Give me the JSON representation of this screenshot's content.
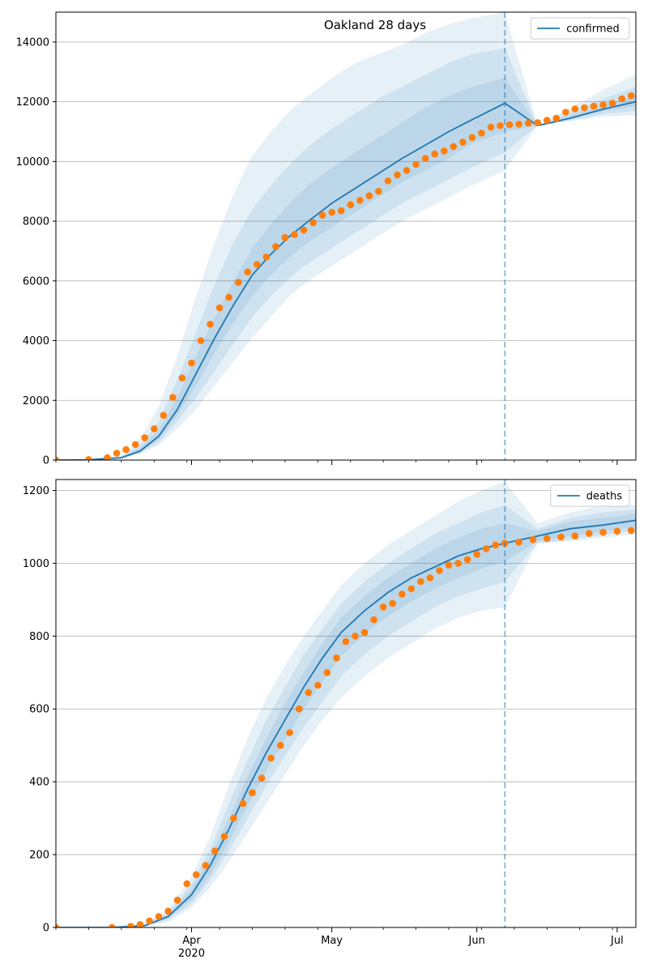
{
  "chart_data": [
    {
      "type": "line",
      "title": "Oakland 28 days",
      "xlabel": "",
      "ylabel": "",
      "legend": "top-right",
      "legend_entries": [
        "confirmed"
      ],
      "ylim": [
        0,
        15000
      ],
      "yticks": [
        0,
        2000,
        4000,
        6000,
        8000,
        10000,
        12000,
        14000
      ],
      "grid": "horizontal",
      "xlim": [
        "2020-03-03",
        "2020-07-05"
      ],
      "x_tick_labels": [],
      "forecast_start": "2020-06-07",
      "colors": {
        "line": "#1f77b4",
        "observed": "#ff7f0e",
        "band": "#1f77b4"
      },
      "series": [
        {
          "name": "confirmed",
          "kind": "model",
          "x": [
            "2020-03-03",
            "2020-03-10",
            "2020-03-17",
            "2020-03-21",
            "2020-03-25",
            "2020-03-29",
            "2020-04-02",
            "2020-04-06",
            "2020-04-10",
            "2020-04-14",
            "2020-04-18",
            "2020-04-22",
            "2020-04-26",
            "2020-05-01",
            "2020-05-06",
            "2020-05-11",
            "2020-05-16",
            "2020-05-21",
            "2020-05-26",
            "2020-05-31",
            "2020-06-07",
            "2020-06-14",
            "2020-06-21",
            "2020-06-28",
            "2020-07-05"
          ],
          "values": [
            0,
            10,
            80,
            300,
            800,
            1700,
            2900,
            4100,
            5200,
            6200,
            6900,
            7500,
            8000,
            8600,
            9100,
            9600,
            10100,
            10550,
            11000,
            11400,
            11950,
            11200,
            11450,
            11750,
            12000
          ],
          "bands": [
            {
              "lower": [
                0,
                0,
                50,
                200,
                500,
                1050,
                1700,
                2500,
                3300,
                4100,
                4800,
                5500,
                6000,
                6500,
                7000,
                7500,
                8000,
                8400,
                8800,
                9200,
                9700,
                11200,
                11350,
                11500,
                11550
              ],
              "upper": [
                0,
                30,
                150,
                700,
                1800,
                3500,
                5500,
                7300,
                8900,
                10200,
                11000,
                11700,
                12200,
                12800,
                13300,
                13600,
                13900,
                14300,
                14600,
                14800,
                15000,
                11200,
                11800,
                12400,
                12900
              ]
            },
            {
              "lower": [
                0,
                0,
                60,
                230,
                600,
                1300,
                2100,
                3000,
                3900,
                4800,
                5500,
                6100,
                6600,
                7100,
                7600,
                8100,
                8600,
                9000,
                9400,
                9800,
                10300,
                11200,
                11380,
                11580,
                11700
              ],
              "upper": [
                0,
                20,
                120,
                500,
                1300,
                2700,
                4300,
                5900,
                7300,
                8400,
                9200,
                9900,
                10500,
                11100,
                11600,
                12100,
                12500,
                12900,
                13300,
                13600,
                13800,
                11200,
                11650,
                12100,
                12500
              ]
            },
            {
              "lower": [
                0,
                5,
                70,
                260,
                700,
                1500,
                2500,
                3600,
                4600,
                5500,
                6200,
                6800,
                7300,
                7800,
                8300,
                8800,
                9300,
                9700,
                10100,
                10600,
                11000,
                11200,
                11420,
                11680,
                11850
              ],
              "upper": [
                0,
                15,
                100,
                400,
                1000,
                2100,
                3500,
                4800,
                6000,
                7100,
                7900,
                8600,
                9200,
                9800,
                10300,
                10800,
                11300,
                11800,
                12200,
                12500,
                12800,
                11200,
                11550,
                11900,
                12200
              ]
            }
          ]
        },
        {
          "name": "",
          "kind": "observed",
          "x": [
            "2020-03-03",
            "2020-03-10",
            "2020-03-14",
            "2020-03-16",
            "2020-03-18",
            "2020-03-20",
            "2020-03-22",
            "2020-03-24",
            "2020-03-26",
            "2020-03-28",
            "2020-03-30",
            "2020-04-01",
            "2020-04-03",
            "2020-04-05",
            "2020-04-07",
            "2020-04-09",
            "2020-04-11",
            "2020-04-13",
            "2020-04-15",
            "2020-04-17",
            "2020-04-19",
            "2020-04-21",
            "2020-04-23",
            "2020-04-25",
            "2020-04-27",
            "2020-04-29",
            "2020-05-01",
            "2020-05-03",
            "2020-05-05",
            "2020-05-07",
            "2020-05-09",
            "2020-05-11",
            "2020-05-13",
            "2020-05-15",
            "2020-05-17",
            "2020-05-19",
            "2020-05-21",
            "2020-05-23",
            "2020-05-25",
            "2020-05-27",
            "2020-05-29",
            "2020-05-31",
            "2020-06-02",
            "2020-06-04",
            "2020-06-06",
            "2020-06-08",
            "2020-06-10",
            "2020-06-12",
            "2020-06-14",
            "2020-06-16",
            "2020-06-18",
            "2020-06-20",
            "2020-06-22",
            "2020-06-24",
            "2020-06-26",
            "2020-06-28",
            "2020-06-30",
            "2020-07-02",
            "2020-07-04"
          ],
          "values": [
            0,
            20,
            80,
            230,
            350,
            520,
            750,
            1050,
            1500,
            2100,
            2750,
            3250,
            4000,
            4550,
            5100,
            5450,
            5950,
            6300,
            6550,
            6800,
            7150,
            7450,
            7550,
            7700,
            7950,
            8200,
            8300,
            8350,
            8550,
            8700,
            8850,
            9000,
            9350,
            9550,
            9700,
            9900,
            10100,
            10250,
            10350,
            10500,
            10650,
            10800,
            10950,
            11150,
            11200,
            11230,
            11250,
            11280,
            11300,
            11380,
            11450,
            11650,
            11760,
            11800,
            11850,
            11900,
            11950,
            12100,
            12200
          ]
        }
      ]
    },
    {
      "type": "line",
      "title": "",
      "xlabel": "",
      "ylabel": "",
      "legend": "top-right",
      "legend_entries": [
        "deaths"
      ],
      "ylim": [
        0,
        1230
      ],
      "yticks": [
        0,
        200,
        400,
        600,
        800,
        1000,
        1200
      ],
      "grid": "horizontal",
      "xlim": [
        "2020-03-03",
        "2020-07-05"
      ],
      "x_tick_labels": [
        {
          "x": "2020-04-01",
          "label": "Apr",
          "sub": "2020"
        },
        {
          "x": "2020-05-01",
          "label": "May",
          "sub": ""
        },
        {
          "x": "2020-06-01",
          "label": "Jun",
          "sub": ""
        },
        {
          "x": "2020-07-01",
          "label": "Jul",
          "sub": ""
        }
      ],
      "forecast_start": "2020-06-07",
      "colors": {
        "line": "#1f77b4",
        "observed": "#ff7f0e",
        "band": "#1f77b4"
      },
      "series": [
        {
          "name": "deaths",
          "kind": "model",
          "x": [
            "2020-03-03",
            "2020-03-15",
            "2020-03-22",
            "2020-03-27",
            "2020-04-01",
            "2020-04-05",
            "2020-04-09",
            "2020-04-13",
            "2020-04-17",
            "2020-04-21",
            "2020-04-25",
            "2020-04-29",
            "2020-05-03",
            "2020-05-08",
            "2020-05-13",
            "2020-05-18",
            "2020-05-23",
            "2020-05-28",
            "2020-06-02",
            "2020-06-07",
            "2020-06-14",
            "2020-06-21",
            "2020-06-28",
            "2020-07-05"
          ],
          "values": [
            0,
            0,
            5,
            30,
            90,
            170,
            270,
            380,
            480,
            570,
            660,
            740,
            810,
            870,
            920,
            960,
            990,
            1020,
            1040,
            1055,
            1075,
            1095,
            1105,
            1118
          ],
          "bands": [
            {
              "lower": [
                0,
                0,
                3,
                15,
                55,
                110,
                180,
                260,
                340,
                420,
                500,
                570,
                630,
                690,
                740,
                780,
                820,
                850,
                870,
                880,
                1055,
                1060,
                1070,
                1080
              ],
              "upper": [
                0,
                2,
                10,
                50,
                140,
                250,
                390,
                520,
                630,
                720,
                800,
                870,
                940,
                1000,
                1050,
                1090,
                1130,
                1170,
                1200,
                1225,
                1110,
                1140,
                1160,
                1160
              ]
            },
            {
              "lower": [
                0,
                0,
                4,
                20,
                65,
                130,
                210,
                300,
                390,
                470,
                550,
                620,
                690,
                750,
                800,
                840,
                880,
                910,
                930,
                950,
                1055,
                1065,
                1078,
                1090
              ],
              "upper": [
                0,
                1,
                8,
                40,
                120,
                215,
                340,
                460,
                570,
                660,
                750,
                820,
                890,
                950,
                1000,
                1040,
                1080,
                1110,
                1140,
                1160,
                1095,
                1125,
                1140,
                1148
              ]
            },
            {
              "lower": [
                0,
                0,
                4,
                25,
                75,
                145,
                235,
                335,
                430,
                515,
                600,
                675,
                745,
                805,
                855,
                895,
                930,
                960,
                985,
                1005,
                1060,
                1075,
                1088,
                1100
              ],
              "upper": [
                0,
                1,
                6,
                35,
                105,
                190,
                300,
                415,
                520,
                615,
                700,
                780,
                850,
                910,
                960,
                1000,
                1040,
                1070,
                1095,
                1110,
                1088,
                1115,
                1125,
                1135
              ]
            }
          ]
        },
        {
          "name": "",
          "kind": "observed",
          "x": [
            "2020-03-03",
            "2020-03-15",
            "2020-03-19",
            "2020-03-21",
            "2020-03-23",
            "2020-03-25",
            "2020-03-27",
            "2020-03-29",
            "2020-03-31",
            "2020-04-02",
            "2020-04-04",
            "2020-04-06",
            "2020-04-08",
            "2020-04-10",
            "2020-04-12",
            "2020-04-14",
            "2020-04-16",
            "2020-04-18",
            "2020-04-20",
            "2020-04-22",
            "2020-04-24",
            "2020-04-26",
            "2020-04-28",
            "2020-04-30",
            "2020-05-02",
            "2020-05-04",
            "2020-05-06",
            "2020-05-08",
            "2020-05-10",
            "2020-05-12",
            "2020-05-14",
            "2020-05-16",
            "2020-05-18",
            "2020-05-20",
            "2020-05-22",
            "2020-05-24",
            "2020-05-26",
            "2020-05-28",
            "2020-05-30",
            "2020-06-01",
            "2020-06-03",
            "2020-06-05",
            "2020-06-07",
            "2020-06-10",
            "2020-06-13",
            "2020-06-16",
            "2020-06-19",
            "2020-06-22",
            "2020-06-25",
            "2020-06-28",
            "2020-07-01",
            "2020-07-04"
          ],
          "values": [
            0,
            0,
            3,
            8,
            18,
            30,
            45,
            75,
            120,
            145,
            170,
            210,
            250,
            300,
            340,
            370,
            410,
            465,
            500,
            535,
            600,
            645,
            665,
            700,
            740,
            785,
            800,
            810,
            845,
            880,
            890,
            915,
            930,
            950,
            960,
            980,
            995,
            1000,
            1010,
            1025,
            1040,
            1050,
            1055,
            1058,
            1065,
            1068,
            1072,
            1075,
            1082,
            1085,
            1088,
            1090
          ]
        }
      ]
    }
  ]
}
